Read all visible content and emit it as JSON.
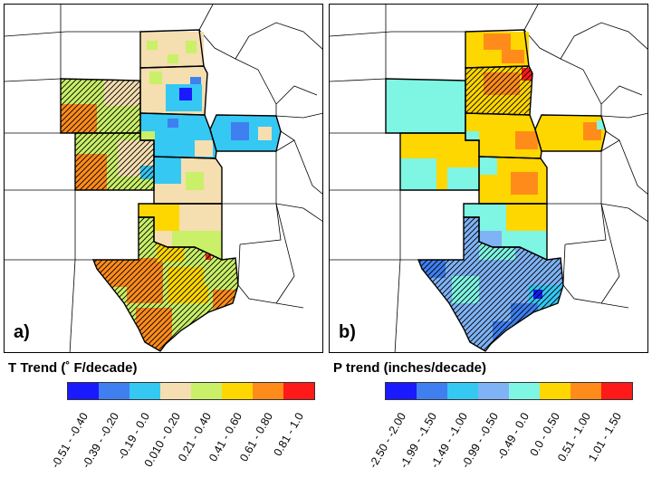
{
  "panels": [
    {
      "id": "a",
      "letter": "a)",
      "legend_title": "T Trend (˚ F/decade)",
      "colors": [
        "#1a1aff",
        "#3f7ff0",
        "#35c8f2",
        "#f5deb0",
        "#c9f068",
        "#ffd700",
        "#ff8c1a",
        "#ff1a1a"
      ],
      "ranges": [
        "-0.51 - -0.40",
        "-0.39 - -0.20",
        "-0.19 - 0.0",
        "0.010 - 0.20",
        "0.21 - 0.40",
        "0.41 - 0.60",
        "0.61 - 0.80",
        "0.81 - 1.0"
      ]
    },
    {
      "id": "b",
      "letter": "b)",
      "legend_title": "P trend (inches/decade)",
      "colors": [
        "#1a1aff",
        "#3f7ff0",
        "#35c8f2",
        "#7fb3f5",
        "#7ff5e3",
        "#ffd700",
        "#ff8c1a",
        "#ff1a1a"
      ],
      "ranges": [
        "-2.50 - -2.00",
        "-1.99 - -1.50",
        "-1.49 - -1.00",
        "-0.99 - -0.50",
        "-0.49 - 0.0",
        "0.0 - 0.50",
        "0.51 - 1.00",
        "1.01 - 1.50"
      ]
    }
  ]
}
